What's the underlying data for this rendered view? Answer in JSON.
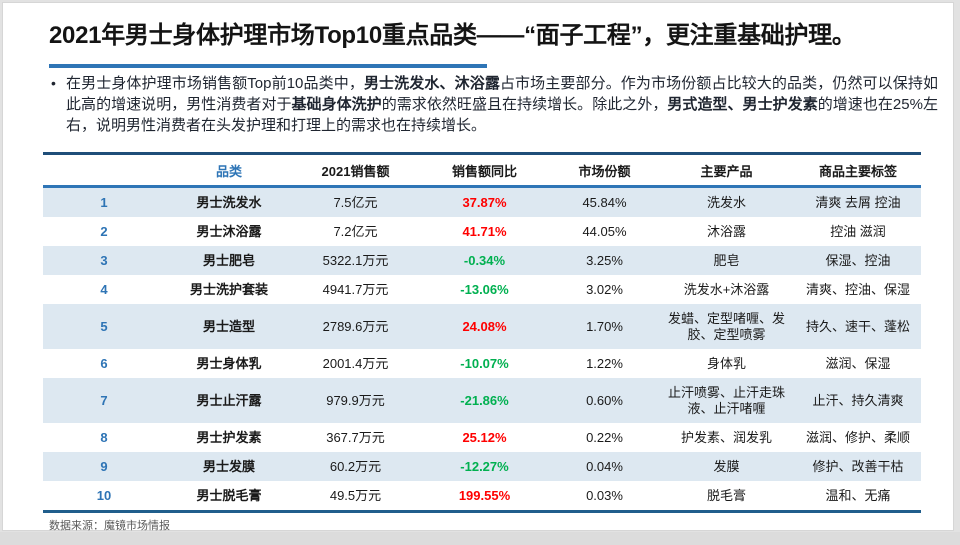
{
  "title": {
    "text": "2021年男士身体护理市场Top10重点品类——“面子工程”，更注重基础护理。"
  },
  "summary": {
    "bullet": "•",
    "segments": [
      {
        "text": "在男士身体护理市场销售额Top前10品类中，",
        "bold": false
      },
      {
        "text": "男士洗发水、沐浴露",
        "bold": true
      },
      {
        "text": "占市场主要部分。作为市场份额占比较大的品类，仍然可以保持如此高的增速说明，男性消费者对于",
        "bold": false
      },
      {
        "text": "基础身体洗护",
        "bold": true
      },
      {
        "text": "的需求依然旺盛且在持续增长。除此之外，",
        "bold": false
      },
      {
        "text": "男式造型、男士护发素",
        "bold": true
      },
      {
        "text": "的增速也在25%左右，说明男性消费者在头发护理和打理上的需求也在持续增长。",
        "bold": false
      }
    ]
  },
  "table": {
    "headers": [
      "",
      "品类",
      "2021销售额",
      "销售额同比",
      "市场份额",
      "主要产品",
      "商品主要标签"
    ],
    "rows": [
      {
        "rank": "1",
        "category": "男士洗发水",
        "sales": "7.5亿元",
        "yoy": "37.87%",
        "share": "45.84%",
        "products": "洗发水",
        "tags": "清爽 去屑 控油"
      },
      {
        "rank": "2",
        "category": "男士沐浴露",
        "sales": "7.2亿元",
        "yoy": "41.71%",
        "share": "44.05%",
        "products": "沐浴露",
        "tags": "控油 滋润"
      },
      {
        "rank": "3",
        "category": "男士肥皂",
        "sales": "5322.1万元",
        "yoy": "-0.34%",
        "share": "3.25%",
        "products": "肥皂",
        "tags": "保湿、控油"
      },
      {
        "rank": "4",
        "category": "男士洗护套装",
        "sales": "4941.7万元",
        "yoy": "-13.06%",
        "share": "3.02%",
        "products": "洗发水+沐浴露",
        "tags": "清爽、控油、保湿"
      },
      {
        "rank": "5",
        "category": "男士造型",
        "sales": "2789.6万元",
        "yoy": "24.08%",
        "share": "1.70%",
        "products": "发蜡、定型啫喱、发胶、定型喷雾",
        "tags": "持久、速干、蓬松"
      },
      {
        "rank": "6",
        "category": "男士身体乳",
        "sales": "2001.4万元",
        "yoy": "-10.07%",
        "share": "1.22%",
        "products": "身体乳",
        "tags": "滋润、保湿"
      },
      {
        "rank": "7",
        "category": "男士止汗露",
        "sales": "979.9万元",
        "yoy": "-21.86%",
        "share": "0.60%",
        "products": "止汗喷雾、止汗走珠液、止汗啫喱",
        "tags": "止汗、持久清爽"
      },
      {
        "rank": "8",
        "category": "男士护发素",
        "sales": "367.7万元",
        "yoy": "25.12%",
        "share": "0.22%",
        "products": "护发素、润发乳",
        "tags": "滋润、修护、柔顺"
      },
      {
        "rank": "9",
        "category": "男士发膜",
        "sales": "60.2万元",
        "yoy": "-12.27%",
        "share": "0.04%",
        "products": "发膜",
        "tags": "修护、改善干枯"
      },
      {
        "rank": "10",
        "category": "男士脱毛膏",
        "sales": "49.5万元",
        "yoy": "199.55%",
        "share": "0.03%",
        "products": "脱毛膏",
        "tags": "温和、无痛"
      }
    ]
  },
  "footer": {
    "source": "数据来源：魔镜市场情报"
  },
  "colors": {
    "accent_blue": "#2E75B6",
    "table_border_dark": "#1F4E79",
    "table_border_bottom": "#205E8C",
    "stripe_blue": "#DDE8F1",
    "rank_blue": "#2E74B5",
    "positive_red": "#FF0000",
    "negative_green": "#00B050",
    "footer_gray": "#595959"
  }
}
